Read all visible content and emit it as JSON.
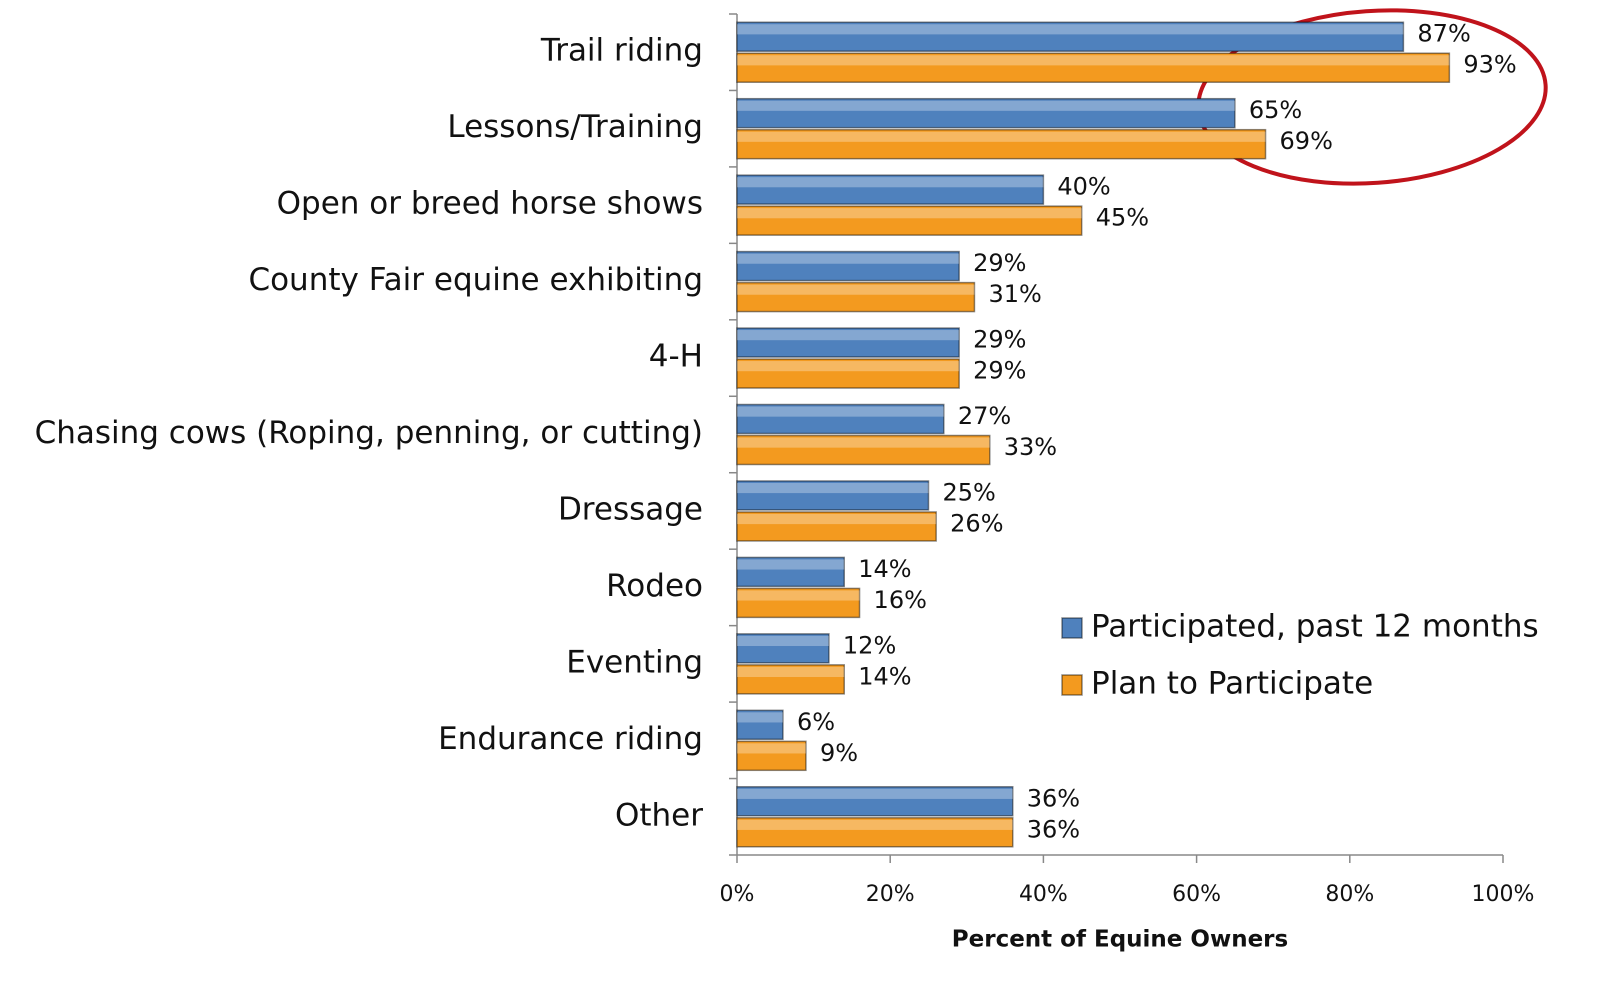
{
  "chart_data": {
    "type": "bar",
    "orientation": "horizontal",
    "x_label": "Percent of Equine Owners",
    "categories": [
      "Trail riding",
      "Lessons/Training",
      "Open or breed horse shows",
      "County Fair equine exhibiting",
      "4-H",
      "Chasing cows (Roping, penning, or cutting)",
      "Dressage",
      "Rodeo",
      "Eventing",
      "Endurance riding",
      "Other"
    ],
    "series": [
      {
        "name": "Participated, past 12 months",
        "color": "#4f81bd",
        "values": [
          87,
          65,
          40,
          29,
          29,
          27,
          25,
          14,
          12,
          6,
          36
        ],
        "value_labels": [
          "87%",
          "65%",
          "40%",
          "29%",
          "29%",
          "27%",
          "25%",
          "14%",
          "12%",
          "6%",
          "36%"
        ]
      },
      {
        "name": "Plan to Participate",
        "color": "#f39a1f",
        "values": [
          93,
          69,
          45,
          31,
          29,
          33,
          26,
          16,
          14,
          9,
          36
        ],
        "value_labels": [
          "93%",
          "69%",
          "45%",
          "31%",
          "29%",
          "33%",
          "26%",
          "16%",
          "14%",
          "9%",
          "36%"
        ]
      }
    ],
    "xlim": [
      0,
      100
    ],
    "xticks": [
      {
        "value": 0,
        "label": "0%"
      },
      {
        "value": 20,
        "label": "20%"
      },
      {
        "value": 40,
        "label": "40%"
      },
      {
        "value": 60,
        "label": "60%"
      },
      {
        "value": 80,
        "label": "80%"
      },
      {
        "value": 100,
        "label": "100%"
      }
    ],
    "legend": "right"
  }
}
